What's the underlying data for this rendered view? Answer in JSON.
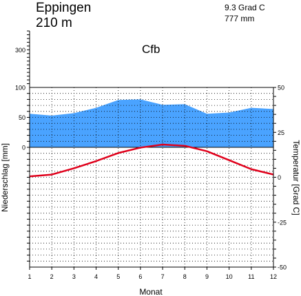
{
  "station": {
    "name": "Eppingen",
    "elevation": "210 m",
    "mean_temperature": "9.3 Grad C",
    "annual_precipitation": "777 mm",
    "climate_class": "Cfb"
  },
  "chart_data": {
    "type": "area",
    "xlabel": "Monat",
    "ylabel_left": "Niederschlag [mm]",
    "ylabel_right": "Temperatur [Grad C]",
    "x": [
      1,
      2,
      3,
      4,
      5,
      6,
      7,
      8,
      9,
      10,
      11,
      12
    ],
    "x_tick_labels": [
      "1",
      "2",
      "3",
      "4",
      "5",
      "6",
      "7",
      "8",
      "9",
      "10",
      "11",
      "12"
    ],
    "xlim": [
      1,
      12
    ],
    "precip_ylim": [
      -200,
      100
    ],
    "precip_upper_ylim": [
      100,
      400
    ],
    "temp_ylim": [
      -50,
      50
    ],
    "left_tick_labels": [
      {
        "value": 0,
        "label": "0"
      },
      {
        "value": 50,
        "label": "50"
      },
      {
        "value": 100,
        "label": "100"
      },
      {
        "value": 300,
        "label": "300"
      }
    ],
    "right_tick_labels": [
      {
        "value": 50,
        "label": "50"
      },
      {
        "value": 25,
        "label": "25"
      },
      {
        "value": 0,
        "label": "0"
      },
      {
        "value": -25,
        "label": "-25"
      },
      {
        "value": -50,
        "label": "-50"
      }
    ],
    "series": [
      {
        "values": [
          56,
          53,
          57,
          66,
          79,
          80,
          71,
          72,
          56,
          58,
          66,
          64
        ],
        "color": "#4aa3ff"
      },
      {
        "values": [
          0.5,
          1.5,
          5,
          9,
          13.5,
          16.5,
          18.2,
          17.5,
          14.5,
          9.5,
          4.5,
          1.5
        ],
        "color": "#e0001b"
      }
    ],
    "grid": true,
    "grid_style": "dotted"
  }
}
